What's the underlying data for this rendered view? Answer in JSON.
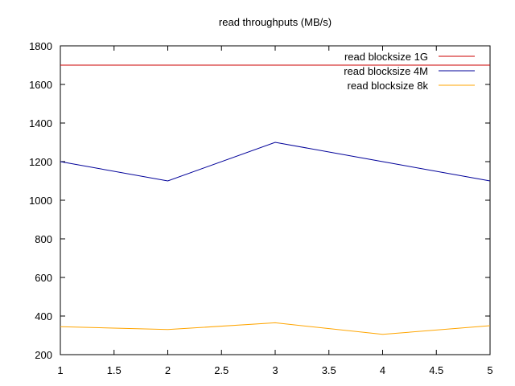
{
  "chart_data": {
    "type": "line",
    "title": "read throughputs (MB/s)",
    "xlabel": "",
    "ylabel": "",
    "xlim": [
      1,
      5
    ],
    "ylim": [
      200,
      1800
    ],
    "x_ticks": [
      1,
      1.5,
      2,
      2.5,
      3,
      3.5,
      4,
      4.5,
      5
    ],
    "x_tick_labels": [
      "1",
      "1.5",
      "2",
      "2.5",
      "3",
      "3.5",
      "4",
      "4.5",
      "5"
    ],
    "y_ticks": [
      200,
      400,
      600,
      800,
      1000,
      1200,
      1400,
      1600,
      1800
    ],
    "y_tick_labels": [
      "200",
      "400",
      "600",
      "800",
      "1000",
      "1200",
      "1400",
      "1600",
      "1800"
    ],
    "grid": false,
    "legend_position": "top-right",
    "x": [
      1,
      2,
      3,
      4,
      5
    ],
    "series": [
      {
        "name": "read blocksize 1G",
        "color": "#cc0000",
        "values": [
          1700,
          1700,
          1700,
          1700,
          1700
        ]
      },
      {
        "name": "read blocksize 4M",
        "color": "#000099",
        "values": [
          1200,
          1100,
          1300,
          1200,
          1100
        ]
      },
      {
        "name": "read blocksize 8k",
        "color": "#ffa500",
        "values": [
          345,
          330,
          365,
          305,
          350
        ]
      }
    ]
  }
}
